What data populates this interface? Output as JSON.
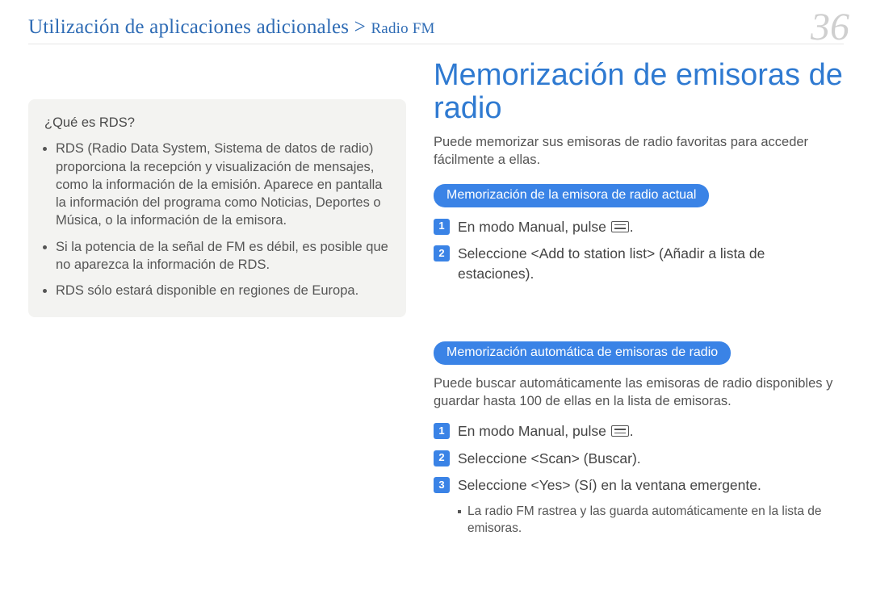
{
  "breadcrumb": {
    "main": "Utilización de aplicaciones adicionales",
    "sep": ">",
    "sub": "Radio FM"
  },
  "pageNumber": "36",
  "infobox": {
    "title": "¿Qué es RDS?",
    "items": [
      "RDS (Radio Data System, Sistema de datos de radio) proporciona la recepción y visualización de mensajes, como la información de la emisión. Aparece en pantalla la información del programa como Noticias, Deportes o Música, o la información de la emisora.",
      "Si la potencia de la señal de FM es débil, es posible que no aparezca la información de RDS.",
      "RDS sólo estará disponible en regiones de Europa."
    ]
  },
  "mainTitle": "Memorización de emisoras de radio",
  "intro": "Puede memorizar sus emisoras de radio favoritas para acceder fácilmente a ellas.",
  "section1": {
    "pill": "Memorización de la emisora de radio actual",
    "step1_pre": "En modo Manual, pulse ",
    "step1_post": ".",
    "step2": "Seleccione <Add to station list> (Añadir a lista de estaciones)."
  },
  "section2": {
    "pill": "Memorización automática de emisoras de radio",
    "subIntro": "Puede buscar automáticamente las emisoras de radio disponibles y guardar hasta 100 de ellas en la lista de emisoras.",
    "step1_pre": "En modo Manual, pulse ",
    "step1_post": ".",
    "step2": "Seleccione <Scan> (Buscar).",
    "step3": "Seleccione <Yes> (Sí) en la ventana emergente.",
    "note": "La radio FM rastrea y las guarda automáticamente en la lista de emisoras."
  }
}
